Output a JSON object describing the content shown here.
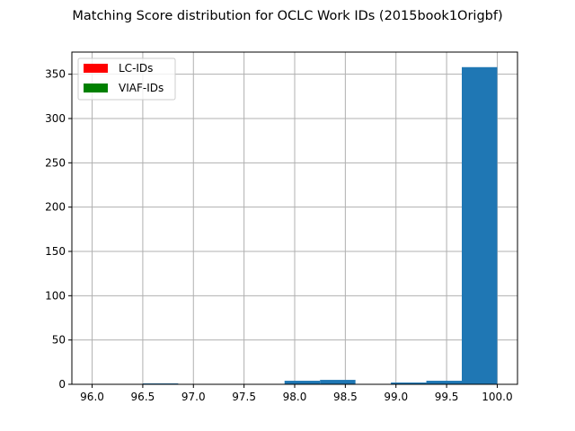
{
  "chart_data": {
    "type": "bar",
    "title": "Matching Score distribution for OCLC Work IDs (2015book1Origbf)",
    "xlabel": "",
    "ylabel": "",
    "xlim": [
      95.8,
      100.2
    ],
    "ylim": [
      0,
      375
    ],
    "x_ticks": [
      96.0,
      96.5,
      97.0,
      97.5,
      98.0,
      98.5,
      99.0,
      99.5,
      100.0
    ],
    "x_tick_labels": [
      "96.0",
      "96.5",
      "97.0",
      "97.5",
      "98.0",
      "98.5",
      "99.0",
      "99.5",
      "100.0"
    ],
    "y_ticks": [
      0,
      50,
      100,
      150,
      200,
      250,
      300,
      350
    ],
    "y_tick_labels": [
      "0",
      "50",
      "100",
      "150",
      "200",
      "250",
      "300",
      "350"
    ],
    "grid": true,
    "legend_position": "upper-left",
    "legend": [
      {
        "label": "LC-IDs",
        "color": "#ff0000"
      },
      {
        "label": "VIAF-IDs",
        "color": "#008000"
      }
    ],
    "bar_color": "#1f77b4",
    "bins": [
      {
        "x0": 96.0,
        "x1": 96.35,
        "value": 0
      },
      {
        "x0": 96.5,
        "x1": 96.85,
        "value": 1
      },
      {
        "x0": 96.85,
        "x1": 97.2,
        "value": 0
      },
      {
        "x0": 97.2,
        "x1": 97.55,
        "value": 0
      },
      {
        "x0": 97.55,
        "x1": 97.9,
        "value": 0
      },
      {
        "x0": 97.9,
        "x1": 98.25,
        "value": 4
      },
      {
        "x0": 98.25,
        "x1": 98.6,
        "value": 5
      },
      {
        "x0": 98.95,
        "x1": 99.3,
        "value": 2
      },
      {
        "x0": 99.3,
        "x1": 99.65,
        "value": 4
      },
      {
        "x0": 99.65,
        "x1": 100.0,
        "value": 358
      }
    ]
  }
}
